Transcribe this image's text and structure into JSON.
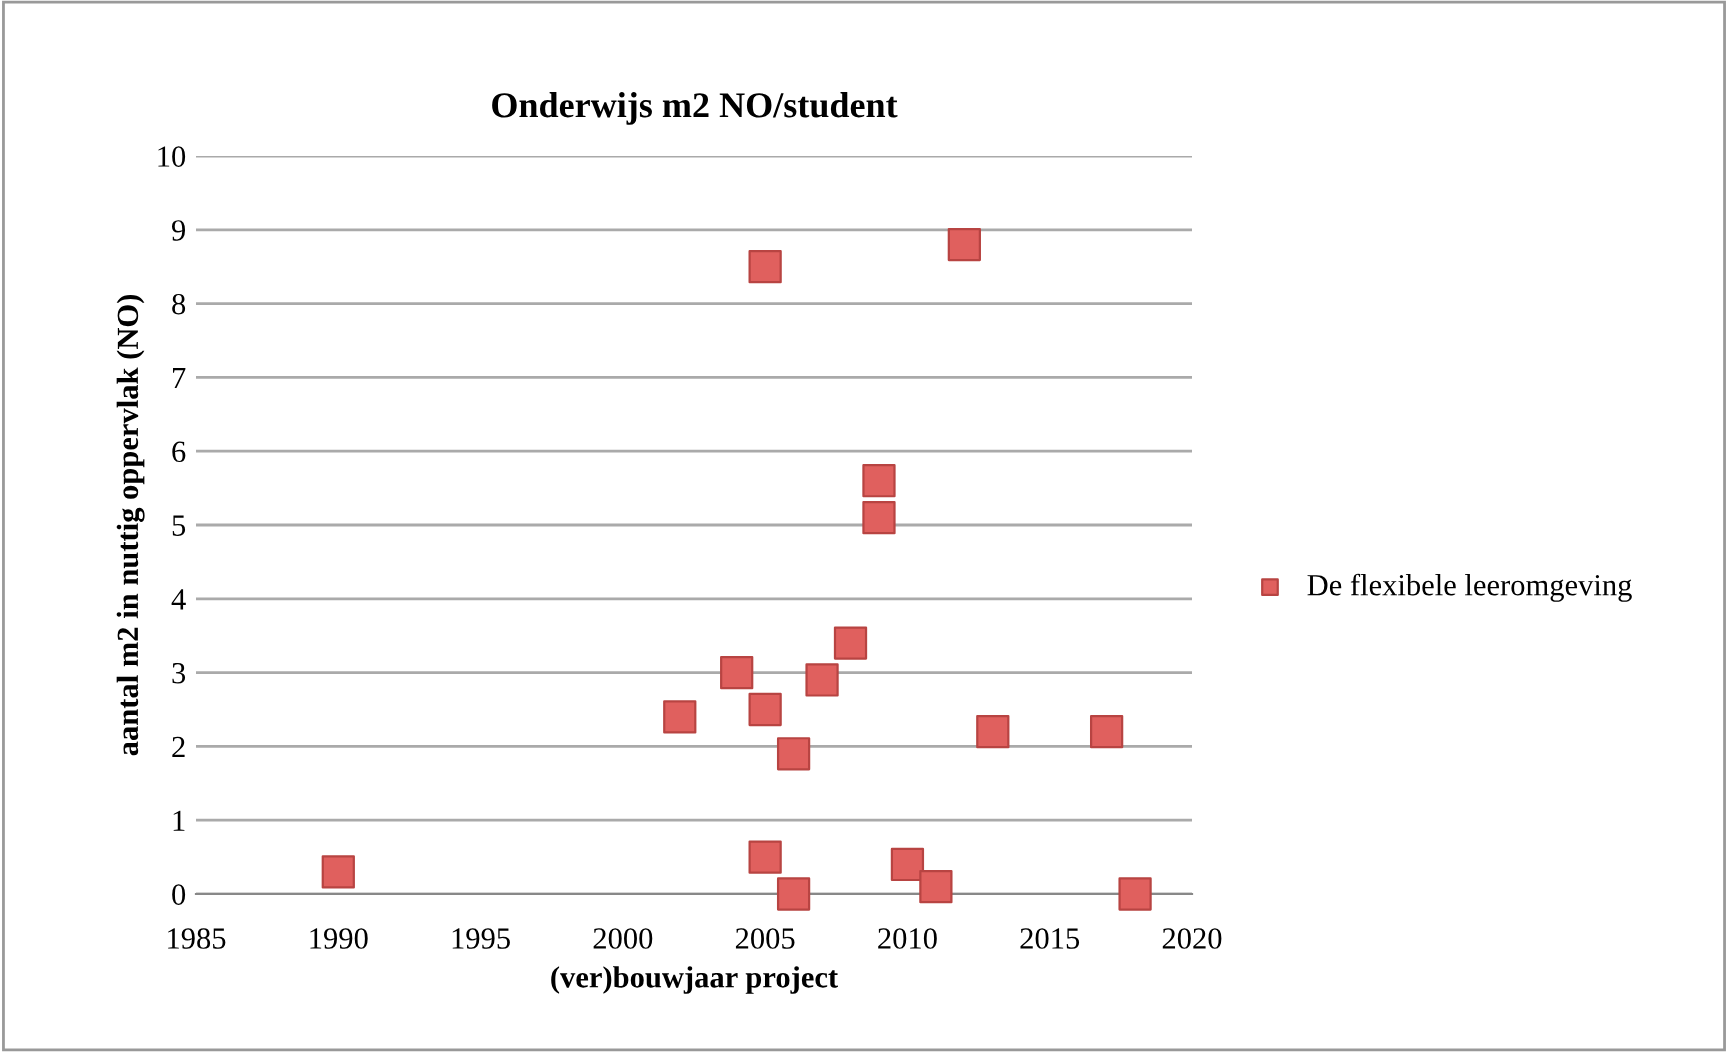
{
  "chart_data": {
    "type": "scatter",
    "title": "Onderwijs m2 NO/student",
    "xlabel": "(ver)bouwjaar project",
    "ylabel": "aantal m2 in nuttig oppervlak (NO)",
    "series": [
      {
        "name": "De flexibele leeromgeving",
        "color": "#e0605e",
        "x": [
          1990,
          2002,
          2004,
          2005,
          2005,
          2005,
          2006,
          2006,
          2007,
          2008,
          2009,
          2009,
          2010,
          2011,
          2012,
          2013,
          2017,
          2018
        ],
        "values": [
          0.3,
          2.4,
          3.0,
          2.5,
          0.5,
          8.5,
          1.9,
          0,
          2.9,
          3.4,
          5.6,
          5.1,
          0.4,
          0.1,
          8.8,
          2.2,
          2.2,
          0
        ]
      }
    ],
    "xlim": [
      1985,
      2020
    ],
    "xticks": [
      1985,
      1990,
      1995,
      2000,
      2005,
      2010,
      2015,
      2020
    ],
    "ylim": [
      0,
      10
    ],
    "yticks": [
      0,
      1,
      2,
      3,
      4,
      5,
      6,
      7,
      8,
      9,
      10
    ],
    "grid": "y",
    "legend": "right",
    "marker": "square"
  }
}
